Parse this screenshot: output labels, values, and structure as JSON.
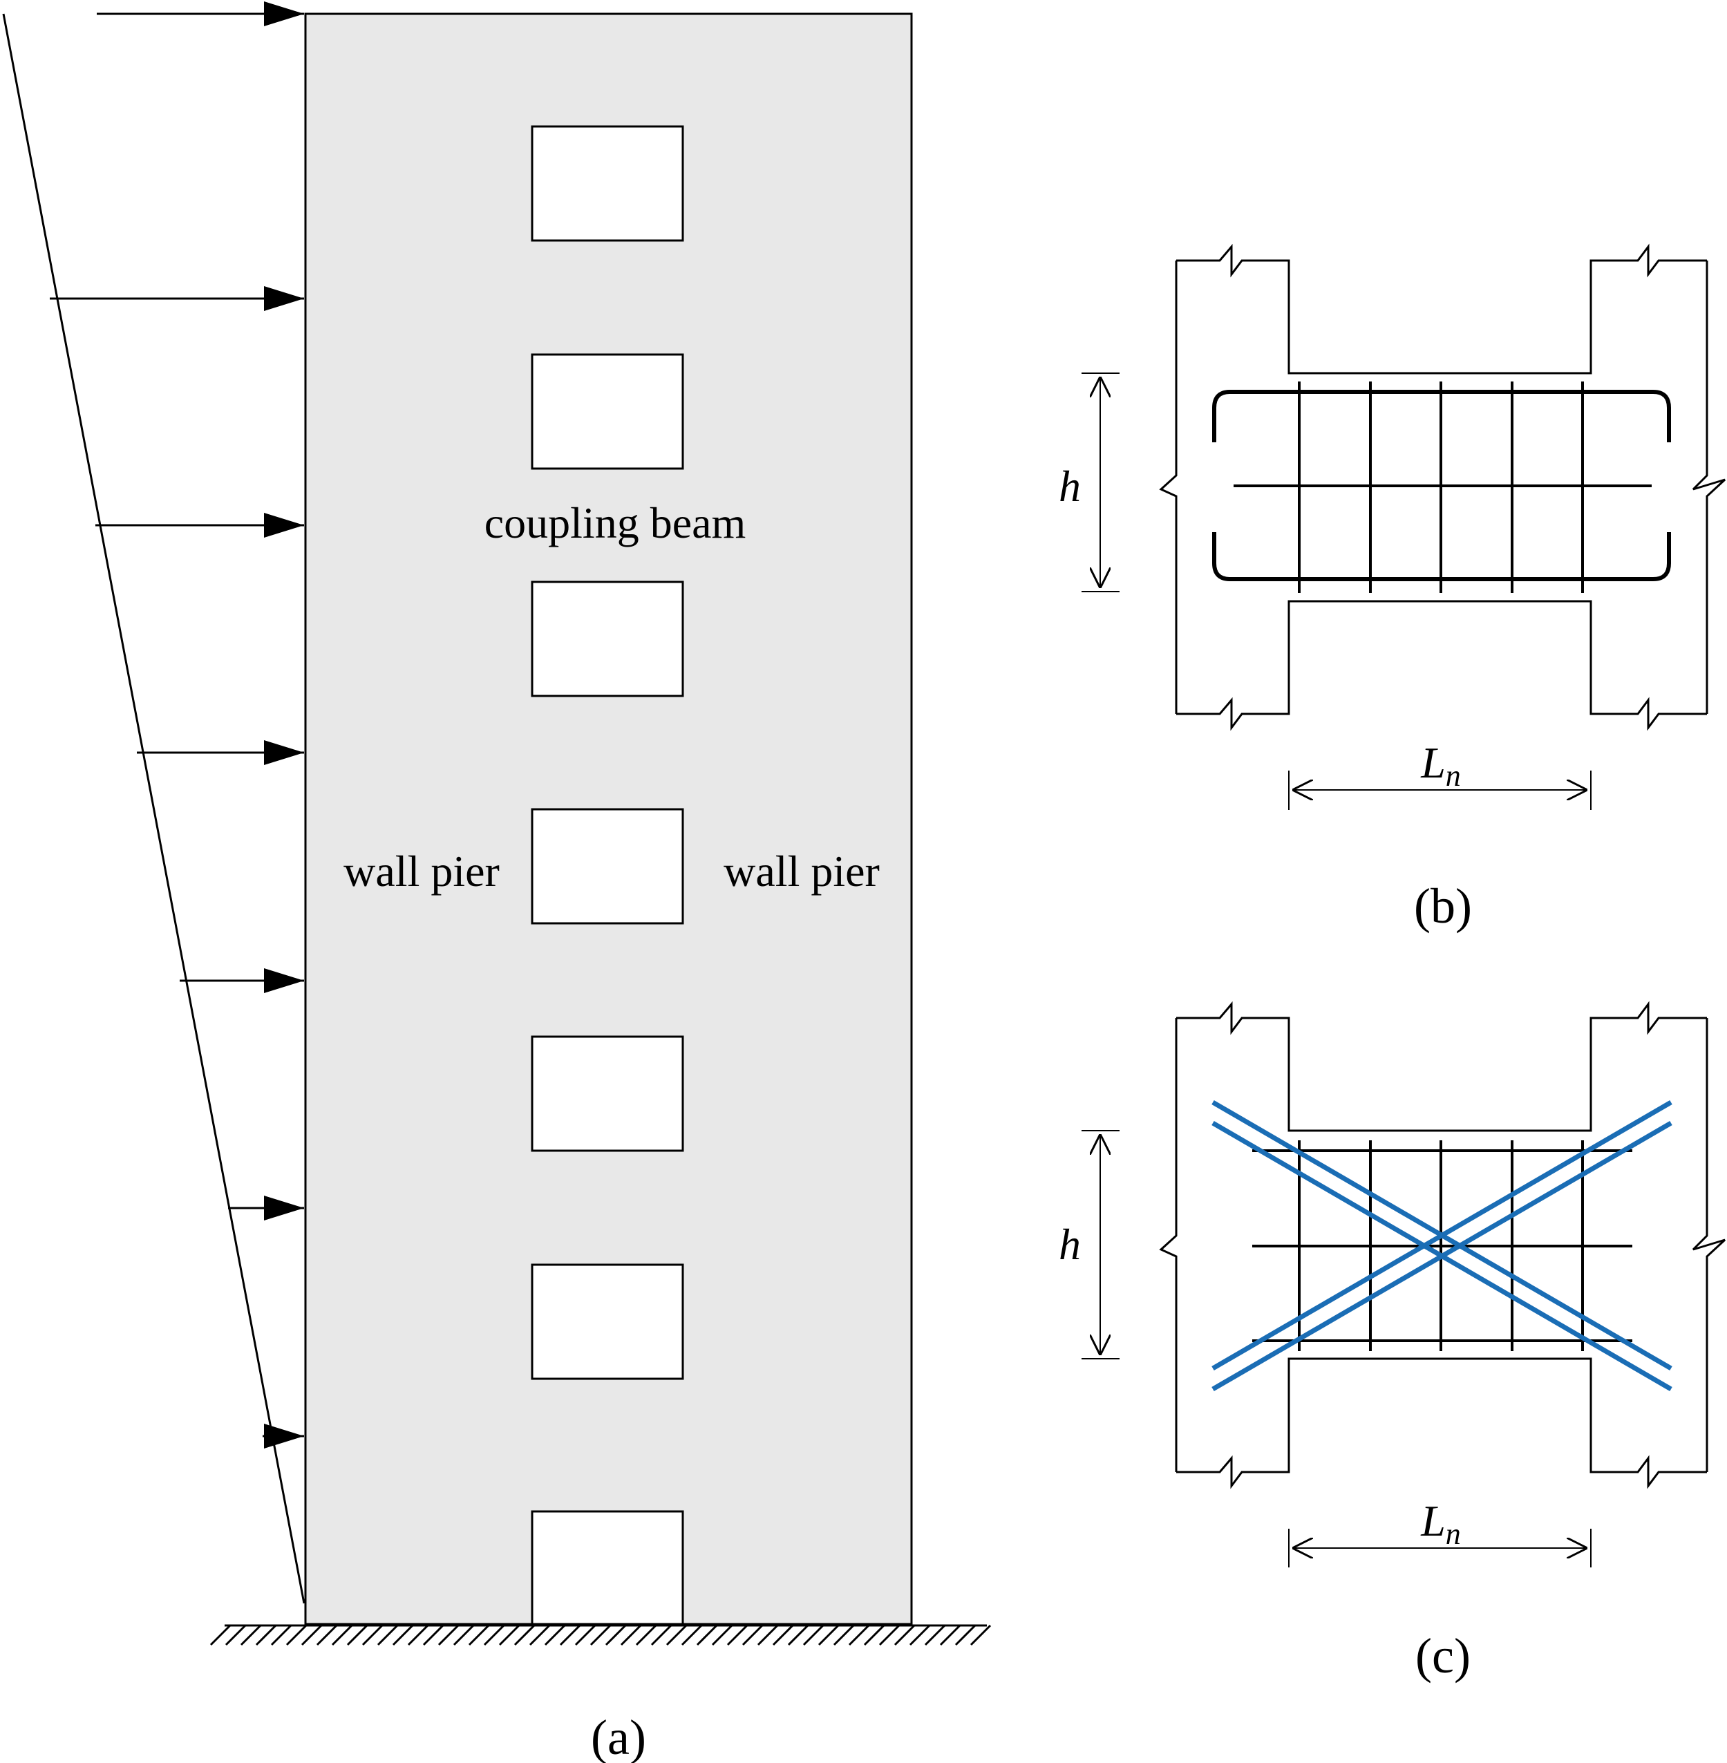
{
  "panel_a": {
    "caption": "(a)",
    "coupling_beam_label": "coupling beam",
    "wall_pier_left_label": "wall pier",
    "wall_pier_right_label": "wall pier"
  },
  "panel_b": {
    "caption": "(b)",
    "height_label": "h",
    "span_label_main": "L",
    "span_label_sub": "n"
  },
  "panel_c": {
    "caption": "(c)",
    "height_label": "h",
    "span_label_main": "L",
    "span_label_sub": "n"
  },
  "colors": {
    "wall_fill": "#e8e8e8",
    "line": "#000000",
    "diagonal_rebar": "#1a6db5"
  }
}
